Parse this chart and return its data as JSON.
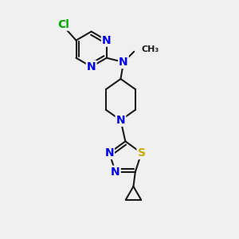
{
  "background_color": "#f0f0f0",
  "bond_color": "#1a1a1a",
  "N_color": "#0000ee",
  "S_color": "#ccaa00",
  "Cl_color": "#00aa00",
  "bond_width": 1.5,
  "figsize": [
    3.0,
    3.0
  ],
  "dpi": 100,
  "xlim": [
    0,
    10
  ],
  "ylim": [
    0,
    10
  ]
}
